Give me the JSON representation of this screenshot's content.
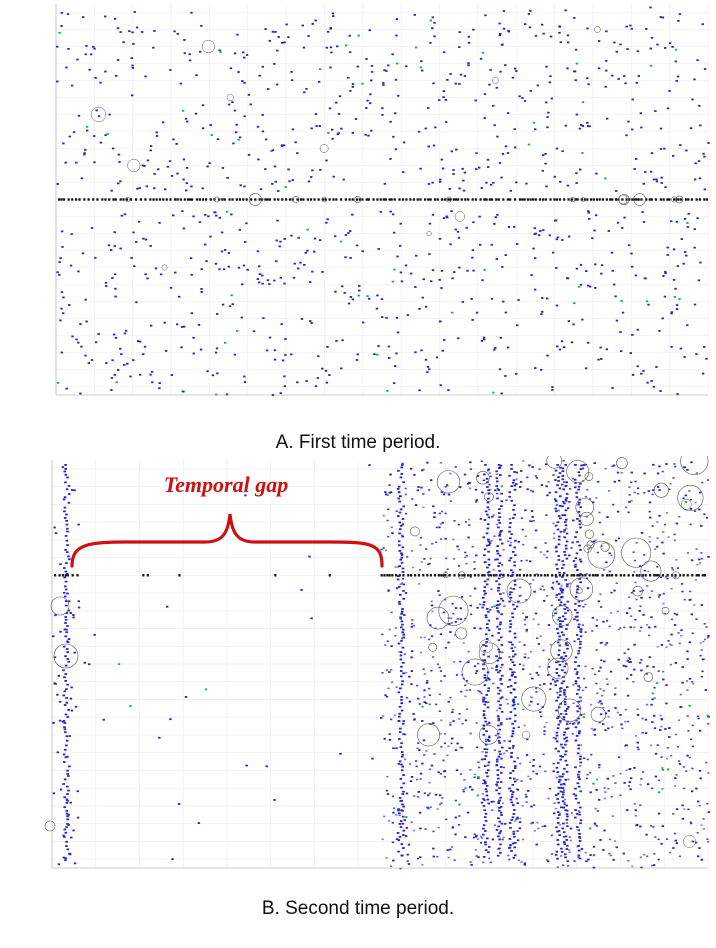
{
  "figure": {
    "caption_a": "A. First time period.",
    "caption_b": "B. Second time period."
  },
  "chart_data": [
    {
      "type": "scatter",
      "panel": "A",
      "title": "",
      "xlabel": "",
      "ylabel": "",
      "grid": true,
      "rows": [
        "",
        "",
        "",
        "",
        "",
        "",
        "",
        "",
        "",
        "",
        "",
        "",
        "",
        "",
        "",
        "",
        "",
        "",
        "",
        "",
        "",
        "",
        ""
      ],
      "x_ticks": [
        "",
        "",
        "",
        "",
        "",
        "",
        "",
        "",
        "",
        "",
        "",
        "",
        "",
        "",
        "",
        "",
        "",
        ""
      ],
      "dense_rows": [
        11
      ],
      "colors": {
        "marker": "#2323c8",
        "highlight": "#22aa44",
        "dense": "#111111",
        "circle": "#555555"
      }
    },
    {
      "type": "scatter",
      "panel": "B",
      "title": "",
      "xlabel": "",
      "ylabel": "",
      "grid": true,
      "rows": [
        "",
        "",
        "",
        "",
        "",
        "",
        "",
        "",
        "",
        "",
        "",
        "",
        "",
        "",
        "",
        "",
        "",
        "",
        "",
        "",
        "",
        "",
        ""
      ],
      "x_ticks": [
        "",
        "",
        "",
        "",
        "",
        "",
        "",
        "",
        "",
        "",
        "",
        "",
        "",
        "",
        "",
        ""
      ],
      "dense_rows": [
        6
      ],
      "annotation": "Temporal gap",
      "gap_range": [
        0.04,
        0.5
      ],
      "colors": {
        "marker": "#2323c8",
        "highlight": "#22aa44",
        "dense": "#111111",
        "circle": "#555555",
        "annotation": "#cc1111"
      }
    }
  ]
}
